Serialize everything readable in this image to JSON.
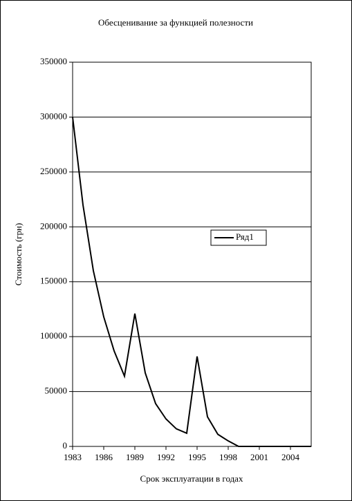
{
  "chart_data": {
    "type": "line",
    "title": "Обесценивание за функцией полезности",
    "x_label": "Срок эксплуатации в годах",
    "y_label": "Стоимость (грн)",
    "x": [
      1983,
      1984,
      1985,
      1986,
      1987,
      1988,
      1989,
      1990,
      1991,
      1992,
      1993,
      1994,
      1995,
      1996,
      1997,
      1998,
      1999,
      2000,
      2001,
      2002,
      2003,
      2004,
      2005,
      2006
    ],
    "series": [
      {
        "name": "Ряд1",
        "color": "#000000",
        "values": [
          300000,
          220000,
          160000,
          118000,
          87000,
          64000,
          121000,
          67000,
          39000,
          25000,
          16000,
          12000,
          82000,
          27000,
          11000,
          5000,
          0,
          0,
          0,
          0,
          0,
          0,
          0,
          0
        ]
      }
    ],
    "xlim": [
      1983,
      2006
    ],
    "xticks": [
      1983,
      1986,
      1989,
      1992,
      1995,
      1998,
      2001,
      2004
    ],
    "ylim": [
      0,
      350000
    ],
    "yticks": [
      0,
      50000,
      100000,
      150000,
      200000,
      250000,
      300000,
      350000
    ],
    "grid": true,
    "legend": "right"
  }
}
